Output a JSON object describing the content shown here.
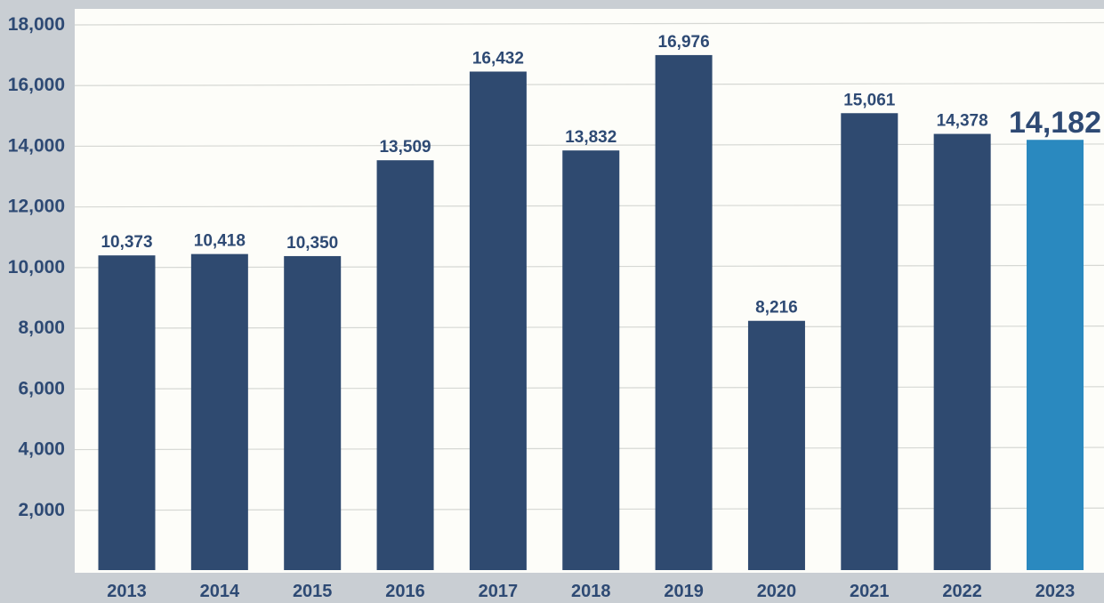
{
  "colors": {
    "background": "#c9ced3",
    "plot_background": "#fdfdf9",
    "gridline": "#d6d8d4",
    "bar": "#2f4a70",
    "bar_highlight": "#2a89bf",
    "text": "#2e4a74"
  },
  "chart_data": {
    "type": "bar",
    "title": "",
    "xlabel": "",
    "ylabel": "",
    "categories": [
      "2013",
      "2014",
      "2015",
      "2016",
      "2017",
      "2018",
      "2019",
      "2020",
      "2021",
      "2022",
      "2023"
    ],
    "values": [
      10373,
      10418,
      10350,
      13509,
      16432,
      13832,
      16976,
      8216,
      15061,
      14378,
      14182
    ],
    "value_labels": [
      "10,373",
      "10,418",
      "10,350",
      "13,509",
      "16,432",
      "13,832",
      "16,976",
      "8,216",
      "15,061",
      "14,378",
      "14,182"
    ],
    "highlight_category": "2023",
    "ylim": [
      0,
      18000
    ],
    "y_ticks": [
      2000,
      4000,
      6000,
      8000,
      10000,
      12000,
      14000,
      16000,
      18000
    ],
    "y_tick_labels": [
      "2,000",
      "4,000",
      "6,000",
      "8,000",
      "10,000",
      "12,000",
      "14,000",
      "16,000",
      "18,000"
    ],
    "grid": true,
    "legend": "none"
  }
}
